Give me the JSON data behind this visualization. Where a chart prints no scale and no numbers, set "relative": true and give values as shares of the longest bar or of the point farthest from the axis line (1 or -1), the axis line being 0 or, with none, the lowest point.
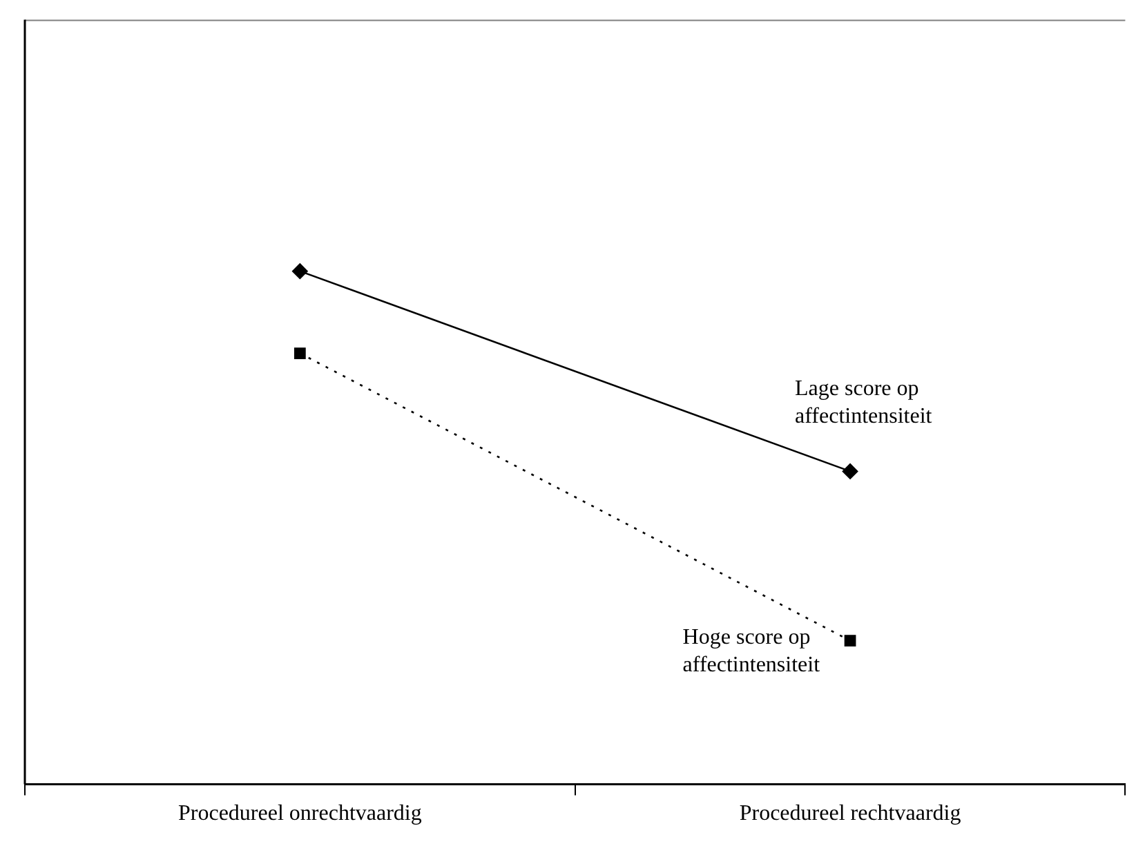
{
  "chart_data": {
    "type": "line",
    "relative": true,
    "categories": [
      "Procedureel onrechtvaardig",
      "Procedureel rechtvaardig"
    ],
    "series": [
      {
        "name": "Lage score op affectintensiteit",
        "color": "#000000",
        "values": [
          1,
          0.61
        ],
        "marker": "diamond",
        "line_style": "solid"
      },
      {
        "name": "Hoge score op affectintensiteit",
        "color": "#000000",
        "values": [
          0.84,
          0.28
        ],
        "marker": "square",
        "line_style": "dotted"
      }
    ],
    "legend": false,
    "grid": false
  }
}
